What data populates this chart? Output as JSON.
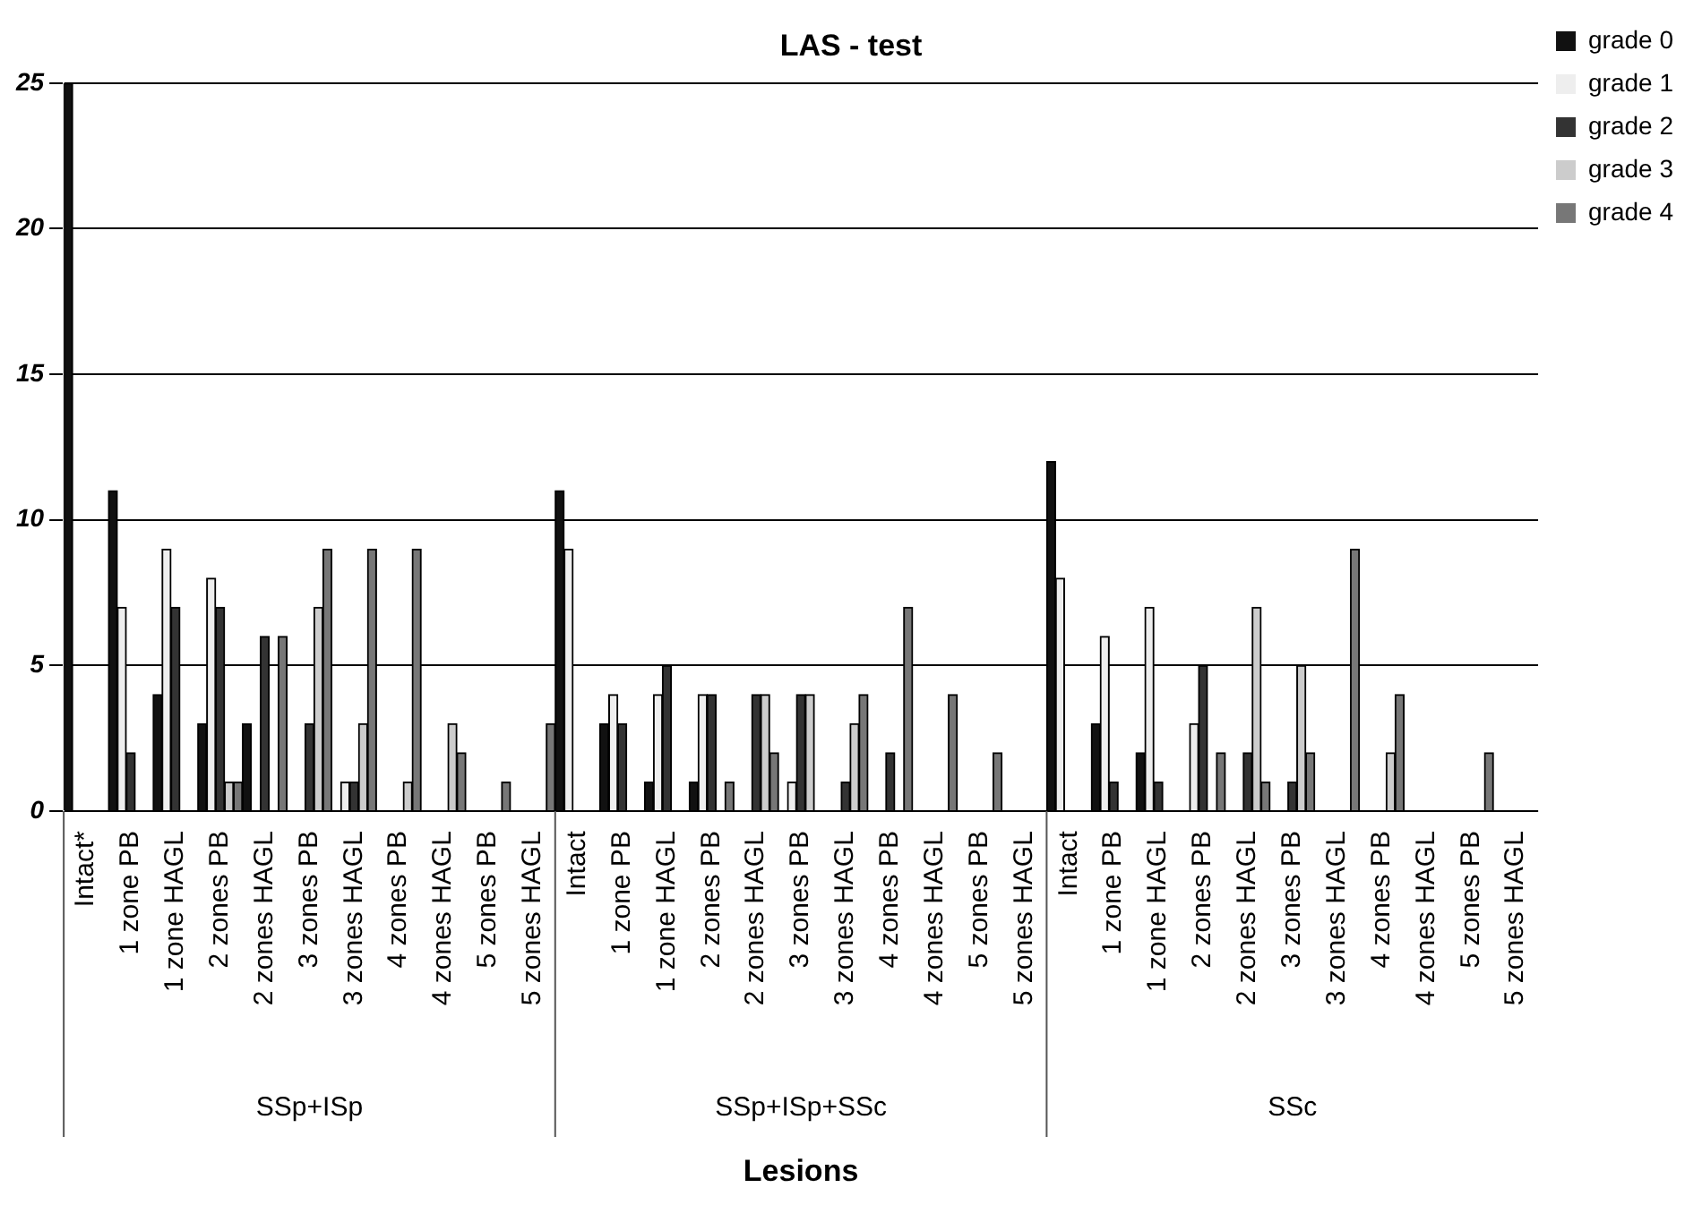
{
  "chart_data": {
    "type": "bar",
    "title": "LAS - test",
    "xlabel": "Lesions",
    "categories": [
      "Intact*",
      "1 zone PB",
      "1 zone HAGL",
      "2 zones PB",
      "2 zones HAGL",
      "3 zones PB",
      "3 zones HAGL",
      "4 zones PB",
      "4 zones HAGL",
      "5 zones PB",
      "5 zones HAGL",
      "Intact",
      "1 zone PB",
      "1 zone HAGL",
      "2 zones PB",
      "2 zones HAGL",
      "3 zones PB",
      "3 zones HAGL",
      "4 zones PB",
      "4 zones HAGL",
      "5 zones PB",
      "5 zones HAGL",
      "Intact",
      "1 zone PB",
      "1 zone HAGL",
      "2 zones PB",
      "2 zones HAGL",
      "3 zones PB",
      "3 zones HAGL",
      "4 zones PB",
      "4 zones HAGL",
      "5 zones PB",
      "5 zones HAGL"
    ],
    "series": [
      {
        "name": "grade 0",
        "color": "#111111",
        "values": [
          25,
          11,
          4,
          3,
          3,
          0,
          0,
          0,
          0,
          0,
          0,
          11,
          3,
          1,
          1,
          0,
          0,
          0,
          0,
          0,
          0,
          0,
          12,
          3,
          2,
          0,
          0,
          0,
          0,
          0,
          0,
          0,
          0
        ]
      },
      {
        "name": "grade 1",
        "color": "#eeeeee",
        "values": [
          0,
          7,
          9,
          8,
          0,
          0,
          1,
          0,
          0,
          0,
          0,
          9,
          4,
          4,
          4,
          0,
          1,
          0,
          0,
          0,
          0,
          0,
          8,
          6,
          7,
          3,
          0,
          0,
          0,
          0,
          0,
          0,
          0
        ]
      },
      {
        "name": "grade 2",
        "color": "#333333",
        "values": [
          0,
          2,
          7,
          7,
          6,
          3,
          1,
          0,
          0,
          0,
          0,
          0,
          3,
          5,
          4,
          4,
          4,
          1,
          2,
          0,
          0,
          0,
          0,
          1,
          1,
          5,
          2,
          1,
          0,
          0,
          0,
          0,
          0
        ]
      },
      {
        "name": "grade 3",
        "color": "#cccccc",
        "values": [
          0,
          0,
          0,
          1,
          0,
          7,
          3,
          1,
          3,
          0,
          0,
          0,
          0,
          0,
          0,
          4,
          4,
          3,
          0,
          0,
          0,
          0,
          0,
          0,
          0,
          0,
          7,
          5,
          0,
          2,
          0,
          0,
          0
        ]
      },
      {
        "name": "grade 4",
        "color": "#777777",
        "values": [
          0,
          0,
          0,
          1,
          6,
          9,
          9,
          9,
          2,
          1,
          3,
          0,
          0,
          0,
          1,
          2,
          0,
          4,
          7,
          4,
          2,
          0,
          0,
          0,
          0,
          2,
          1,
          2,
          9,
          4,
          0,
          2,
          0
        ]
      }
    ],
    "annotations": [
      "SSp+ISp",
      "SSp+ISp+SSc",
      "SSc"
    ],
    "ylim": [
      0,
      25
    ],
    "yticks": [
      0,
      5,
      10,
      15,
      20,
      25
    ],
    "grid": "y",
    "legend": "top right"
  }
}
